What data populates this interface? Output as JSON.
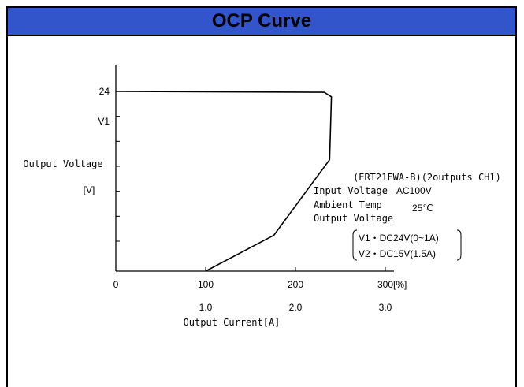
{
  "panel": {
    "title": "OCP Curve",
    "title_bg": "#3355cc"
  },
  "chart_data": {
    "type": "line",
    "title": "OCP Curve",
    "xlabel": "Output Current[A]",
    "ylabel_line1": "Output Voltage",
    "ylabel_line2": "[V]",
    "x_unit": "[%]",
    "xlim": [
      0,
      300
    ],
    "x_ticks": [
      {
        "value": 0,
        "label": "0",
        "current": ""
      },
      {
        "value": 100,
        "label": "100",
        "current": "1.0"
      },
      {
        "value": 200,
        "label": "200",
        "current": "2.0"
      },
      {
        "value": 300,
        "label": "300",
        "current": "3.0"
      }
    ],
    "y_tick_labels": [
      {
        "fraction": 1.0,
        "label": "24"
      },
      {
        "fraction": 0.833,
        "label": "V1"
      }
    ],
    "y_tick_count": 7,
    "series": [
      {
        "points": [
          {
            "x": 0,
            "y": 1.0
          },
          {
            "x": 232,
            "y": 0.995
          },
          {
            "x": 240,
            "y": 0.97
          },
          {
            "x": 238,
            "y": 0.62
          },
          {
            "x": 176,
            "y": 0.2
          },
          {
            "x": 100,
            "y": 0.0
          }
        ]
      }
    ],
    "annotations": {
      "model": "(ERT21FWA-B)(2outputs CH1)",
      "input_voltage_label": "Input Voltage",
      "input_voltage_value": "AC100V",
      "ambient_label": "Ambient Temp",
      "ambient_value": "25℃",
      "output_voltage_label": "Output Voltage",
      "v1": "V1・DC24V(0~1A)",
      "v2": "V2・DC15V(1.5A)"
    }
  }
}
